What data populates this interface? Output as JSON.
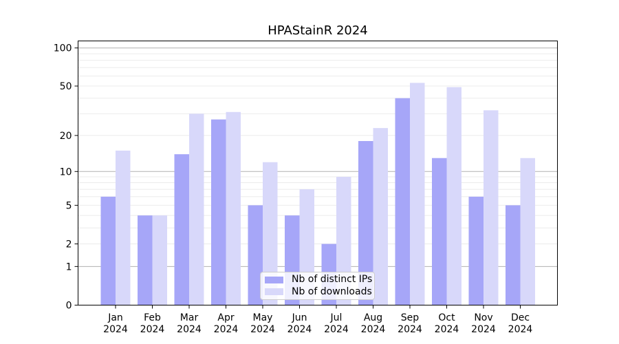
{
  "chart_data": {
    "type": "bar",
    "title": "HPAStainR 2024",
    "categories": [
      "Jan",
      "Feb",
      "Mar",
      "Apr",
      "May",
      "Jun",
      "Jul",
      "Aug",
      "Sep",
      "Oct",
      "Nov",
      "Dec"
    ],
    "year": "2024",
    "series": [
      {
        "name": "Nb of distinct IPs",
        "color": "#a6a6f8",
        "values": [
          6,
          4,
          14,
          27,
          5,
          4,
          2,
          18,
          40,
          13,
          6,
          5
        ]
      },
      {
        "name": "Nb of downloads",
        "color": "#d8d8fa",
        "values": [
          15,
          4,
          30,
          31,
          12,
          7,
          9,
          23,
          53,
          49,
          32,
          13
        ]
      }
    ],
    "xlabel": "",
    "ylabel": "",
    "yscale": "log10(1+value)",
    "ylim": [
      0,
      115
    ],
    "y_ticks": [
      0,
      1,
      2,
      5,
      10,
      20,
      50,
      100
    ],
    "grid": {
      "major_values": [
        1,
        10,
        100
      ],
      "minor_values": [
        2,
        3,
        4,
        5,
        6,
        7,
        8,
        9,
        20,
        30,
        40,
        50,
        60,
        70,
        80,
        90
      ],
      "major_color": "#b0b0b0",
      "minor_color": "#ebebeb"
    },
    "legend_position": "lower center",
    "axis_color": "#000000",
    "background_color": "#ffffff"
  }
}
